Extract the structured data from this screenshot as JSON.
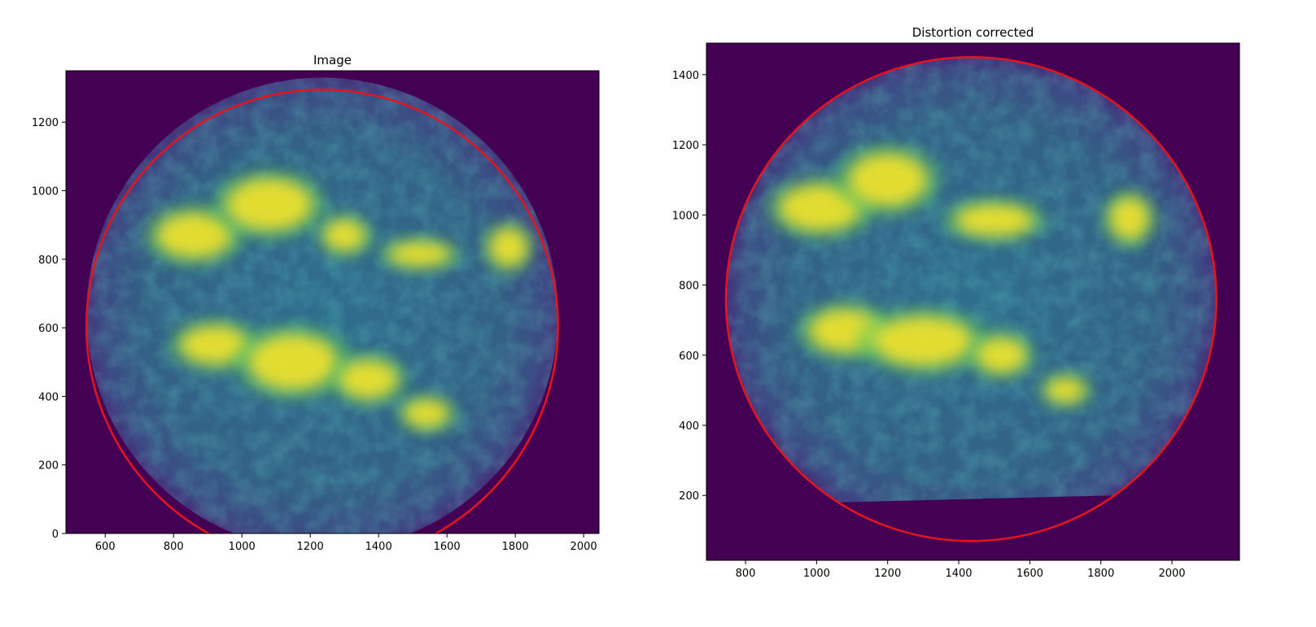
{
  "chart_data": [
    {
      "type": "heatmap",
      "title": "Image",
      "xlim": [
        485,
        2045
      ],
      "ylim": [
        0,
        1350
      ],
      "xticks": [
        600,
        800,
        1000,
        1200,
        1400,
        1600,
        1800,
        2000
      ],
      "yticks": [
        0,
        200,
        400,
        600,
        800,
        1000,
        1200
      ],
      "colormap": "viridis",
      "background": "#440154",
      "disk": {
        "cx": 1235,
        "cy": 640,
        "r": 690
      },
      "fit_circle": {
        "cx": 1235,
        "cy": 605,
        "r": 690,
        "color": "#e8141c"
      },
      "bright_regions": [
        {
          "x": 860,
          "y": 870,
          "w": 220,
          "h": 130
        },
        {
          "x": 1080,
          "y": 960,
          "w": 250,
          "h": 150
        },
        {
          "x": 1300,
          "y": 870,
          "w": 120,
          "h": 90
        },
        {
          "x": 1520,
          "y": 815,
          "w": 180,
          "h": 70
        },
        {
          "x": 1780,
          "y": 835,
          "w": 110,
          "h": 110
        },
        {
          "x": 920,
          "y": 550,
          "w": 200,
          "h": 110
        },
        {
          "x": 1150,
          "y": 500,
          "w": 260,
          "h": 160
        },
        {
          "x": 1370,
          "y": 450,
          "w": 170,
          "h": 110
        },
        {
          "x": 1540,
          "y": 350,
          "w": 130,
          "h": 80
        }
      ]
    },
    {
      "type": "heatmap",
      "title": "Distortion corrected",
      "xlim": [
        690,
        2190
      ],
      "ylim": [
        15,
        1490
      ],
      "xticks": [
        800,
        1000,
        1200,
        1400,
        1600,
        1800,
        2000
      ],
      "yticks": [
        200,
        400,
        600,
        800,
        1000,
        1200,
        1400
      ],
      "colormap": "viridis",
      "background": "#440154",
      "disk": {
        "cx": 1435,
        "cy": 760,
        "r": 690
      },
      "fit_circle": {
        "cx": 1435,
        "cy": 760,
        "r": 690,
        "color": "#e8141c"
      },
      "bright_regions": [
        {
          "x": 1010,
          "y": 1020,
          "w": 230,
          "h": 130
        },
        {
          "x": 1200,
          "y": 1100,
          "w": 220,
          "h": 150
        },
        {
          "x": 1500,
          "y": 985,
          "w": 220,
          "h": 90
        },
        {
          "x": 1880,
          "y": 990,
          "w": 110,
          "h": 120
        },
        {
          "x": 1080,
          "y": 670,
          "w": 200,
          "h": 120
        },
        {
          "x": 1300,
          "y": 640,
          "w": 280,
          "h": 140
        },
        {
          "x": 1520,
          "y": 600,
          "w": 140,
          "h": 100
        },
        {
          "x": 1700,
          "y": 500,
          "w": 110,
          "h": 70
        }
      ]
    }
  ]
}
